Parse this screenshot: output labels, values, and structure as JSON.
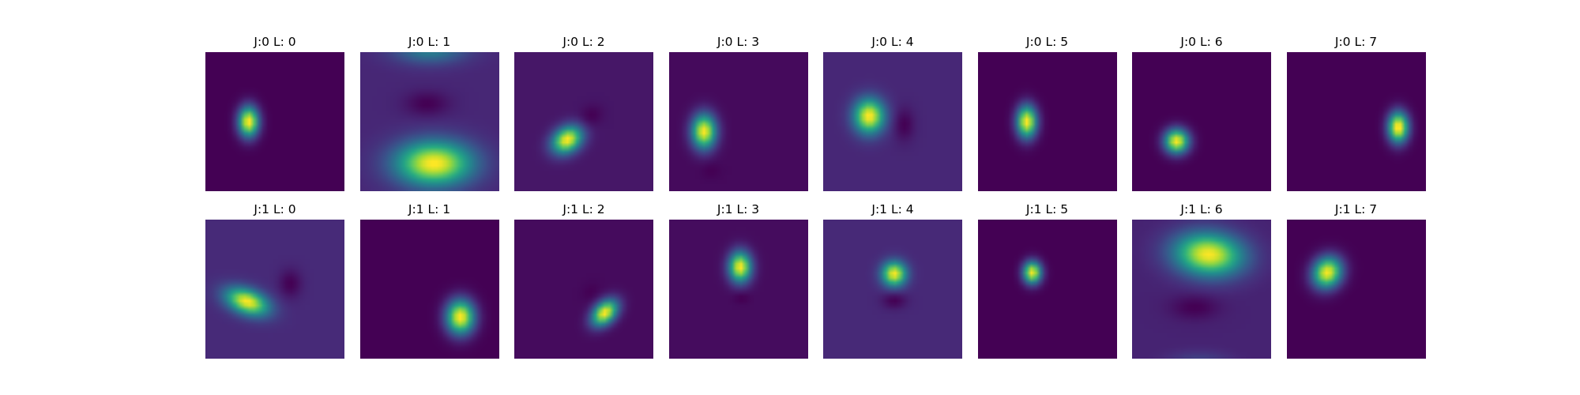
{
  "chart_data": {
    "type": "heatmap",
    "colormap": "viridis",
    "colors": {
      "low": "#440154",
      "high": "#fde725"
    },
    "axes_visible": false,
    "grid": false,
    "layout": {
      "rows": 2,
      "cols": 8
    },
    "panels": [
      {
        "title": "J:0 L: 0",
        "background": 0.0,
        "blobs": [
          {
            "cx": 0.31,
            "cy": 0.5,
            "sx": 0.05,
            "sy": 0.075,
            "angle": 0,
            "amp": 1.0
          }
        ]
      },
      {
        "title": "J:0 L: 1",
        "background": 0.2,
        "blobs": [
          {
            "cx": 0.53,
            "cy": 0.8,
            "sx": 0.19,
            "sy": 0.11,
            "angle": 0,
            "amp": 0.8
          },
          {
            "cx": 0.48,
            "cy": 0.37,
            "sx": 0.11,
            "sy": 0.06,
            "angle": 0,
            "amp": -0.1
          },
          {
            "cx": 0.5,
            "cy": -0.02,
            "sx": 0.18,
            "sy": 0.07,
            "angle": 0,
            "amp": 0.3
          }
        ]
      },
      {
        "title": "J:0 L: 2",
        "background": 0.07,
        "blobs": [
          {
            "cx": 0.38,
            "cy": 0.63,
            "sx": 0.08,
            "sy": 0.06,
            "angle": 35,
            "amp": 0.93
          },
          {
            "cx": 0.55,
            "cy": 0.46,
            "sx": 0.06,
            "sy": 0.05,
            "angle": 35,
            "amp": -0.07
          }
        ]
      },
      {
        "title": "J:0 L: 3",
        "background": 0.03,
        "blobs": [
          {
            "cx": 0.25,
            "cy": 0.57,
            "sx": 0.06,
            "sy": 0.085,
            "angle": 0,
            "amp": 0.97
          },
          {
            "cx": 0.3,
            "cy": 0.85,
            "sx": 0.05,
            "sy": 0.04,
            "angle": 0,
            "amp": -0.03
          }
        ]
      },
      {
        "title": "J:0 L: 4",
        "background": 0.12,
        "blobs": [
          {
            "cx": 0.33,
            "cy": 0.46,
            "sx": 0.075,
            "sy": 0.085,
            "angle": 0,
            "amp": 0.88
          },
          {
            "cx": 0.58,
            "cy": 0.52,
            "sx": 0.05,
            "sy": 0.08,
            "angle": 0,
            "amp": -0.11
          }
        ]
      },
      {
        "title": "J:0 L: 5",
        "background": 0.02,
        "blobs": [
          {
            "cx": 0.35,
            "cy": 0.5,
            "sx": 0.05,
            "sy": 0.08,
            "angle": 0,
            "amp": 0.98
          }
        ]
      },
      {
        "title": "J:0 L: 6",
        "background": 0.0,
        "blobs": [
          {
            "cx": 0.32,
            "cy": 0.64,
            "sx": 0.06,
            "sy": 0.06,
            "angle": 0,
            "amp": 1.0
          }
        ]
      },
      {
        "title": "J:0 L: 7",
        "background": 0.0,
        "blobs": [
          {
            "cx": 0.8,
            "cy": 0.54,
            "sx": 0.05,
            "sy": 0.075,
            "angle": 0,
            "amp": 1.0
          }
        ]
      },
      {
        "title": "J:1 L: 0",
        "background": 0.12,
        "blobs": [
          {
            "cx": 0.3,
            "cy": 0.59,
            "sx": 0.11,
            "sy": 0.06,
            "angle": -20,
            "amp": 0.88
          },
          {
            "cx": 0.61,
            "cy": 0.46,
            "sx": 0.055,
            "sy": 0.07,
            "angle": 0,
            "amp": -0.12
          }
        ]
      },
      {
        "title": "J:1 L: 1",
        "background": 0.0,
        "blobs": [
          {
            "cx": 0.72,
            "cy": 0.7,
            "sx": 0.07,
            "sy": 0.085,
            "angle": 0,
            "amp": 1.0
          }
        ]
      },
      {
        "title": "J:1 L: 2",
        "background": 0.03,
        "blobs": [
          {
            "cx": 0.65,
            "cy": 0.67,
            "sx": 0.075,
            "sy": 0.05,
            "angle": 45,
            "amp": 0.97
          },
          {
            "cx": 0.55,
            "cy": 0.52,
            "sx": 0.05,
            "sy": 0.04,
            "angle": 45,
            "amp": -0.03
          }
        ]
      },
      {
        "title": "J:1 L: 3",
        "background": 0.05,
        "blobs": [
          {
            "cx": 0.51,
            "cy": 0.34,
            "sx": 0.055,
            "sy": 0.075,
            "angle": 0,
            "amp": 0.95
          },
          {
            "cx": 0.52,
            "cy": 0.56,
            "sx": 0.04,
            "sy": 0.03,
            "angle": 0,
            "amp": -0.05
          }
        ]
      },
      {
        "title": "J:1 L: 4",
        "background": 0.12,
        "blobs": [
          {
            "cx": 0.51,
            "cy": 0.39,
            "sx": 0.06,
            "sy": 0.06,
            "angle": 0,
            "amp": 0.88
          },
          {
            "cx": 0.51,
            "cy": 0.58,
            "sx": 0.06,
            "sy": 0.04,
            "angle": 0,
            "amp": -0.12
          }
        ]
      },
      {
        "title": "J:1 L: 5",
        "background": 0.02,
        "blobs": [
          {
            "cx": 0.39,
            "cy": 0.38,
            "sx": 0.045,
            "sy": 0.055,
            "angle": 0,
            "amp": 0.98
          }
        ]
      },
      {
        "title": "J:1 L: 6",
        "background": 0.2,
        "blobs": [
          {
            "cx": 0.55,
            "cy": 0.25,
            "sx": 0.17,
            "sy": 0.105,
            "angle": -5,
            "amp": 0.8
          },
          {
            "cx": 0.45,
            "cy": 0.63,
            "sx": 0.12,
            "sy": 0.06,
            "angle": 0,
            "amp": -0.09
          },
          {
            "cx": 0.48,
            "cy": 1.02,
            "sx": 0.15,
            "sy": 0.05,
            "angle": 0,
            "amp": 0.1
          }
        ]
      },
      {
        "title": "J:1 L: 7",
        "background": 0.04,
        "blobs": [
          {
            "cx": 0.29,
            "cy": 0.38,
            "sx": 0.07,
            "sy": 0.08,
            "angle": -30,
            "amp": 0.96
          }
        ]
      }
    ]
  }
}
